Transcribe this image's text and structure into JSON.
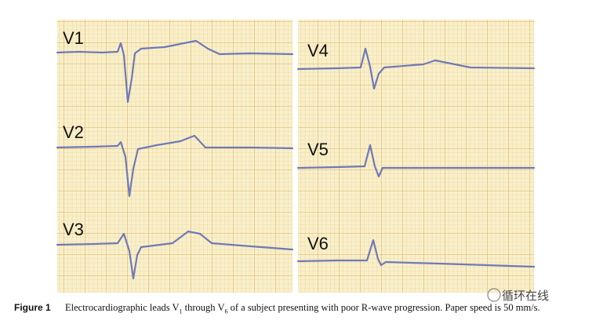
{
  "leads": [
    "V1",
    "V2",
    "V3",
    "V4",
    "V5",
    "V6"
  ],
  "caption": {
    "label": "Figure 1",
    "parts": [
      "Electrocardiographic leads V",
      "1",
      " through V",
      "6",
      " of a subject presenting with poor R-wave progression. Paper speed is 50 mm/s."
    ]
  },
  "watermark": "循环在线"
}
